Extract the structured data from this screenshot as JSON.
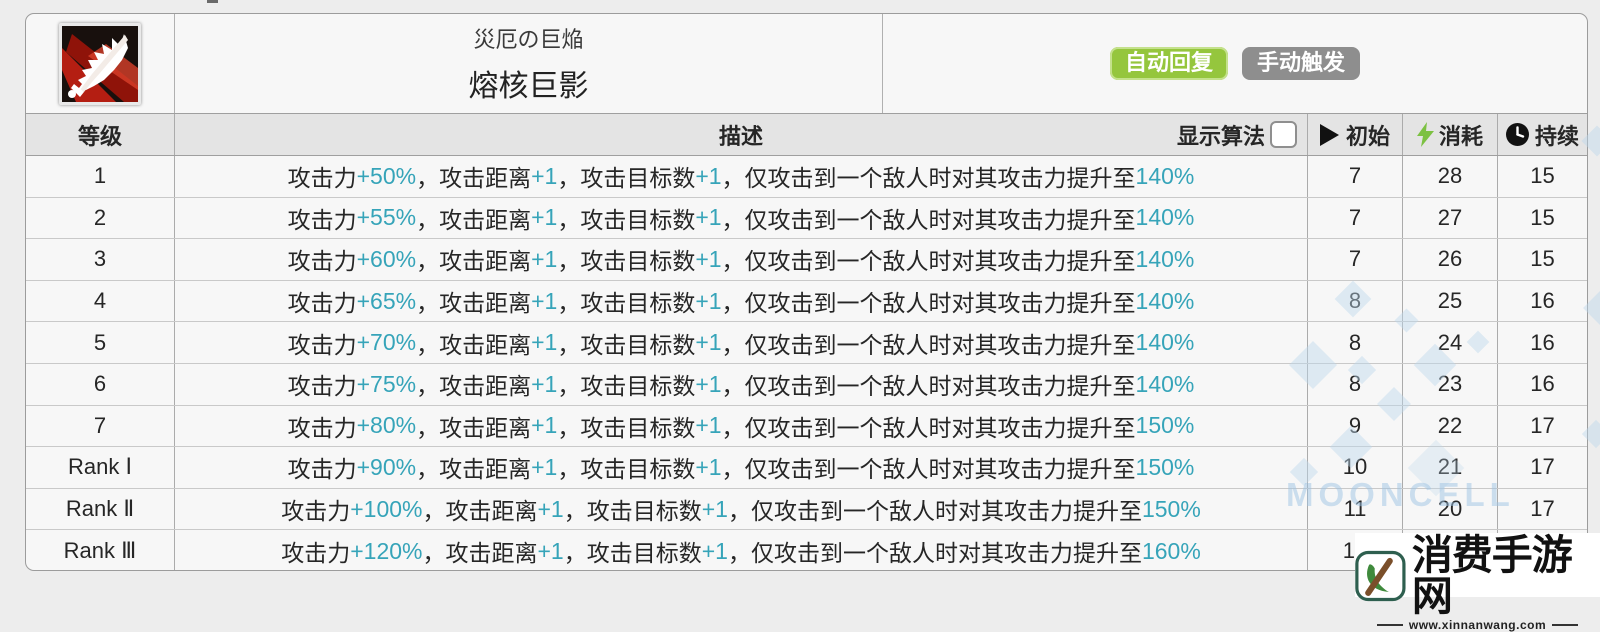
{
  "skill": {
    "name_jp": "災厄の巨焔",
    "name_cn": "熔核巨影",
    "badges": [
      {
        "label": "自动回复",
        "color": "#95c63d"
      },
      {
        "label": "手动触发",
        "color": "#8e8e8e"
      }
    ],
    "icon": "flame-sword-icon"
  },
  "table": {
    "headers": {
      "level": "等级",
      "desc": "描述",
      "algo_label": "显示算法",
      "initial": "初始",
      "cost": "消耗",
      "duration": "持续"
    },
    "header_icons": {
      "initial": "play-icon",
      "cost": "lightning-icon",
      "duration": "clock-icon"
    },
    "algo_checkbox_checked": false,
    "rows": [
      {
        "level": "1",
        "initial": "7",
        "cost": "28",
        "duration": "15",
        "desc_parts": [
          {
            "text": "攻击力",
            "hl": false
          },
          {
            "text": "+50%",
            "hl": true
          },
          {
            "text": "，攻击距离",
            "hl": false
          },
          {
            "text": "+1",
            "hl": true
          },
          {
            "text": "，攻击目标数",
            "hl": false
          },
          {
            "text": "+1",
            "hl": true
          },
          {
            "text": "，仅攻击到一个敌人时对其攻击力提升至",
            "hl": false
          },
          {
            "text": "140%",
            "hl": true
          }
        ]
      },
      {
        "level": "2",
        "initial": "7",
        "cost": "27",
        "duration": "15",
        "desc_parts": [
          {
            "text": "攻击力",
            "hl": false
          },
          {
            "text": "+55%",
            "hl": true
          },
          {
            "text": "，攻击距离",
            "hl": false
          },
          {
            "text": "+1",
            "hl": true
          },
          {
            "text": "，攻击目标数",
            "hl": false
          },
          {
            "text": "+1",
            "hl": true
          },
          {
            "text": "，仅攻击到一个敌人时对其攻击力提升至",
            "hl": false
          },
          {
            "text": "140%",
            "hl": true
          }
        ]
      },
      {
        "level": "3",
        "initial": "7",
        "cost": "26",
        "duration": "15",
        "desc_parts": [
          {
            "text": "攻击力",
            "hl": false
          },
          {
            "text": "+60%",
            "hl": true
          },
          {
            "text": "，攻击距离",
            "hl": false
          },
          {
            "text": "+1",
            "hl": true
          },
          {
            "text": "，攻击目标数",
            "hl": false
          },
          {
            "text": "+1",
            "hl": true
          },
          {
            "text": "，仅攻击到一个敌人时对其攻击力提升至",
            "hl": false
          },
          {
            "text": "140%",
            "hl": true
          }
        ]
      },
      {
        "level": "4",
        "initial": "8",
        "cost": "25",
        "duration": "16",
        "desc_parts": [
          {
            "text": "攻击力",
            "hl": false
          },
          {
            "text": "+65%",
            "hl": true
          },
          {
            "text": "，攻击距离",
            "hl": false
          },
          {
            "text": "+1",
            "hl": true
          },
          {
            "text": "，攻击目标数",
            "hl": false
          },
          {
            "text": "+1",
            "hl": true
          },
          {
            "text": "，仅攻击到一个敌人时对其攻击力提升至",
            "hl": false
          },
          {
            "text": "140%",
            "hl": true
          }
        ]
      },
      {
        "level": "5",
        "initial": "8",
        "cost": "24",
        "duration": "16",
        "desc_parts": [
          {
            "text": "攻击力",
            "hl": false
          },
          {
            "text": "+70%",
            "hl": true
          },
          {
            "text": "，攻击距离",
            "hl": false
          },
          {
            "text": "+1",
            "hl": true
          },
          {
            "text": "，攻击目标数",
            "hl": false
          },
          {
            "text": "+1",
            "hl": true
          },
          {
            "text": "，仅攻击到一个敌人时对其攻击力提升至",
            "hl": false
          },
          {
            "text": "140%",
            "hl": true
          }
        ]
      },
      {
        "level": "6",
        "initial": "8",
        "cost": "23",
        "duration": "16",
        "desc_parts": [
          {
            "text": "攻击力",
            "hl": false
          },
          {
            "text": "+75%",
            "hl": true
          },
          {
            "text": "，攻击距离",
            "hl": false
          },
          {
            "text": "+1",
            "hl": true
          },
          {
            "text": "，攻击目标数",
            "hl": false
          },
          {
            "text": "+1",
            "hl": true
          },
          {
            "text": "，仅攻击到一个敌人时对其攻击力提升至",
            "hl": false
          },
          {
            "text": "140%",
            "hl": true
          }
        ]
      },
      {
        "level": "7",
        "initial": "9",
        "cost": "22",
        "duration": "17",
        "desc_parts": [
          {
            "text": "攻击力",
            "hl": false
          },
          {
            "text": "+80%",
            "hl": true
          },
          {
            "text": "，攻击距离",
            "hl": false
          },
          {
            "text": "+1",
            "hl": true
          },
          {
            "text": "，攻击目标数",
            "hl": false
          },
          {
            "text": "+1",
            "hl": true
          },
          {
            "text": "，仅攻击到一个敌人时对其攻击力提升至",
            "hl": false
          },
          {
            "text": "150%",
            "hl": true
          }
        ]
      },
      {
        "level": "Rank Ⅰ",
        "initial": "10",
        "cost": "21",
        "duration": "17",
        "desc_parts": [
          {
            "text": "攻击力",
            "hl": false
          },
          {
            "text": "+90%",
            "hl": true
          },
          {
            "text": "，攻击距离",
            "hl": false
          },
          {
            "text": "+1",
            "hl": true
          },
          {
            "text": "，攻击目标数",
            "hl": false
          },
          {
            "text": "+1",
            "hl": true
          },
          {
            "text": "，仅攻击到一个敌人时对其攻击力提升至",
            "hl": false
          },
          {
            "text": "150%",
            "hl": true
          }
        ]
      },
      {
        "level": "Rank Ⅱ",
        "initial": "11",
        "cost": "20",
        "duration": "17",
        "desc_parts": [
          {
            "text": "攻击力",
            "hl": false
          },
          {
            "text": "+100%",
            "hl": true
          },
          {
            "text": "，攻击距离",
            "hl": false
          },
          {
            "text": "+1",
            "hl": true
          },
          {
            "text": "，攻击目标数",
            "hl": false
          },
          {
            "text": "+1",
            "hl": true
          },
          {
            "text": "，仅攻击到一个敌人时对其攻击力提升至",
            "hl": false
          },
          {
            "text": "150%",
            "hl": true
          }
        ]
      },
      {
        "level": "Rank Ⅲ",
        "initial": "12",
        "cost": "",
        "duration": "",
        "desc_parts": [
          {
            "text": "攻击力",
            "hl": false
          },
          {
            "text": "+120%",
            "hl": true
          },
          {
            "text": "，攻击距离",
            "hl": false
          },
          {
            "text": "+1",
            "hl": true
          },
          {
            "text": "，攻击目标数",
            "hl": false
          },
          {
            "text": "+1",
            "hl": true
          },
          {
            "text": "，仅攻击到一个敌人时对其攻击力提升至",
            "hl": false
          },
          {
            "text": "160%",
            "hl": true
          }
        ]
      }
    ]
  },
  "watermarks": {
    "mooncell_text": "MOONCELL",
    "site_name": "消费手游网",
    "site_url": "www.xinnanwang.com"
  },
  "colors": {
    "highlight": "#36a4b9",
    "badge_green": "#95c63d",
    "badge_gray": "#8e8e8e",
    "bolt_green": "#7cc142"
  }
}
